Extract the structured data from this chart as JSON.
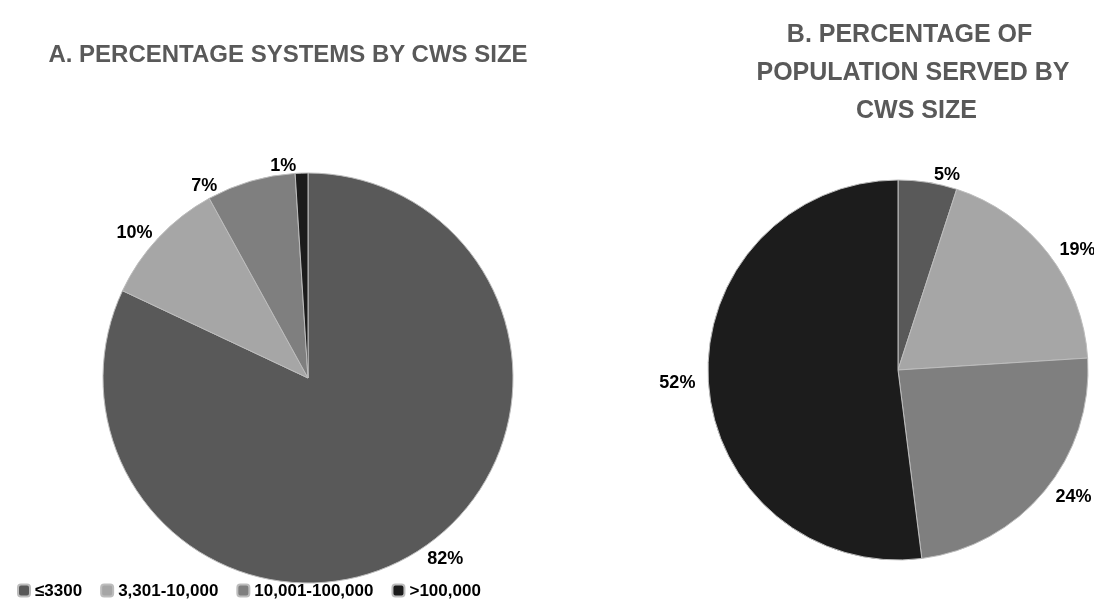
{
  "chart_data": [
    {
      "type": "pie",
      "title": "A. PERCENTAGE SYSTEMS BY CWS SIZE",
      "categories": [
        "≤3300",
        "3,301-10,000",
        "10,001-100,000",
        ">100,000"
      ],
      "values": [
        82,
        10,
        7,
        1
      ],
      "value_labels": [
        "82%",
        "10%",
        "7%",
        "1%"
      ],
      "colors": [
        "#595959",
        "#a6a6a6",
        "#7f7f7f",
        "#1c1c1c"
      ],
      "legend": "bottom left"
    },
    {
      "type": "pie",
      "title": "B. PERCENTAGE OF POPULATION SERVED BY CWS SIZE",
      "categories": [
        null,
        null,
        null,
        null
      ],
      "values": [
        5,
        19,
        24,
        52
      ],
      "value_labels": [
        "5%",
        "19%",
        "24%",
        "52%"
      ],
      "colors": [
        "#595959",
        "#a6a6a6",
        "#7f7f7f",
        "#1c1c1c"
      ],
      "legend": false
    }
  ]
}
